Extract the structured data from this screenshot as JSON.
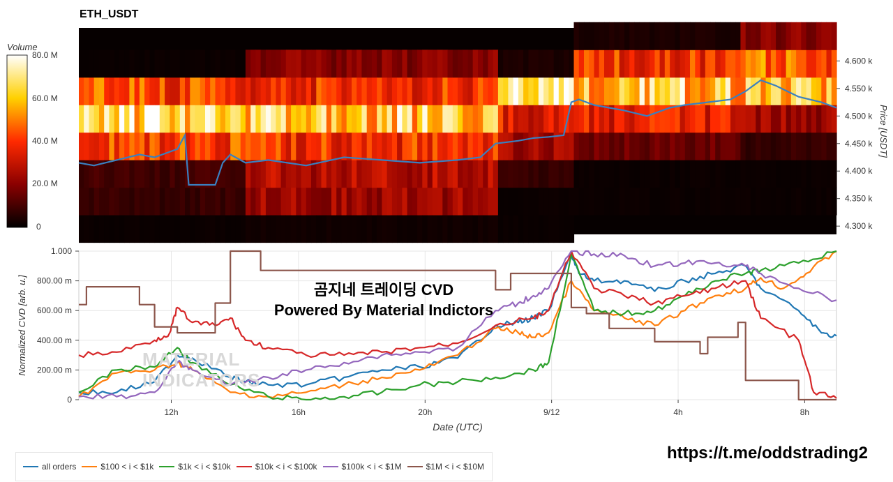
{
  "header": {
    "title": "ETH_USDT"
  },
  "colorbar": {
    "title": "Volume",
    "ticks": [
      "80.0 M",
      "60.0 M",
      "40.0 M",
      "20.0 M",
      "0"
    ]
  },
  "overlay": {
    "line1": "곰지네 트레이딩 CVD",
    "line2": "Powered By Material Indictors"
  },
  "watermark": {
    "line1": "MATERIAL",
    "line2": "INDICATORS"
  },
  "footer": {
    "link": "https://t.me/oddstrading2"
  },
  "legend": [
    {
      "label": "all orders",
      "color": "#1f77b4"
    },
    {
      "label": "$100 < i < $1k",
      "color": "#ff7f0e"
    },
    {
      "label": "$1k < i < $10k",
      "color": "#2ca02c"
    },
    {
      "label": "$10k < i < $100k",
      "color": "#d62728"
    },
    {
      "label": "$100k < i < $1M",
      "color": "#9467bd"
    },
    {
      "label": "$1M < i < $10M",
      "color": "#8c564b"
    }
  ],
  "chart_data": [
    {
      "type": "heatmap",
      "title": "ETH_USDT",
      "ylabel": "Price [USDT]",
      "y_ticks": [
        "4.300 k",
        "4.350 k",
        "4.400 k",
        "4.450 k",
        "4.500 k",
        "4.550 k",
        "4.600 k"
      ],
      "ylim": [
        4285,
        4660
      ],
      "colorbar_range": [
        0,
        80
      ],
      "colorbar_unit": "M",
      "price_bands": [
        4295,
        4345,
        4395,
        4445,
        4495,
        4545,
        4595,
        4645
      ],
      "segments": [
        {
          "x": [
            0,
            0.22
          ],
          "intensity": [
            0.02,
            0.1,
            0.12,
            0.55,
            0.85,
            0.55,
            0.02,
            0.0
          ]
        },
        {
          "x": [
            0.22,
            0.55
          ],
          "intensity": [
            0.03,
            0.3,
            0.35,
            0.5,
            0.8,
            0.5,
            0.25,
            0.0
          ]
        },
        {
          "x": [
            0.55,
            0.65
          ],
          "intensity": [
            0.02,
            0.02,
            0.1,
            0.3,
            0.45,
            0.95,
            0.05,
            0.0
          ]
        },
        {
          "x": [
            0.65,
            0.87
          ],
          "intensity": [
            0.0,
            0.02,
            0.02,
            0.2,
            0.45,
            0.8,
            0.5,
            0.05
          ]
        },
        {
          "x": [
            0.87,
            1.0
          ],
          "intensity": [
            0.0,
            0.02,
            0.02,
            0.1,
            0.3,
            0.75,
            0.6,
            0.25
          ]
        }
      ],
      "price_line": {
        "name": "price",
        "x": [
          0,
          0.02,
          0.05,
          0.08,
          0.1,
          0.12,
          0.13,
          0.14,
          0.145,
          0.18,
          0.19,
          0.2,
          0.22,
          0.25,
          0.3,
          0.35,
          0.4,
          0.45,
          0.5,
          0.53,
          0.55,
          0.58,
          0.6,
          0.62,
          0.64,
          0.65,
          0.66,
          0.68,
          0.7,
          0.72,
          0.75,
          0.78,
          0.8,
          0.83,
          0.86,
          0.88,
          0.9,
          0.92,
          0.95,
          0.98,
          1.0
        ],
        "y": [
          4415,
          4410,
          4420,
          4430,
          4425,
          4435,
          4440,
          4465,
          4375,
          4375,
          4415,
          4430,
          4415,
          4420,
          4410,
          4425,
          4420,
          4415,
          4420,
          4425,
          4450,
          4455,
          4460,
          4462,
          4465,
          4525,
          4530,
          4520,
          4515,
          4510,
          4500,
          4515,
          4520,
          4525,
          4530,
          4545,
          4565,
          4555,
          4535,
          4525,
          4515
        ]
      }
    },
    {
      "type": "line",
      "xlabel": "Date (UTC)",
      "ylabel": "Normalized CVD [arb. u.]",
      "y_ticks": [
        "0",
        "200.00 m",
        "400.00 m",
        "600.00 m",
        "800.00 m",
        "1.000"
      ],
      "ylim": [
        0,
        1
      ],
      "x_ticks": [
        {
          "label": "12h",
          "pos": 0.122
        },
        {
          "label": "16h",
          "pos": 0.29
        },
        {
          "label": "20h",
          "pos": 0.457
        },
        {
          "label": "9/12",
          "pos": 0.624
        },
        {
          "label": "4h",
          "pos": 0.791
        },
        {
          "label": "8h",
          "pos": 0.958
        }
      ],
      "series": [
        {
          "name": "all orders",
          "color": "#1f77b4",
          "x": [
            0,
            0.05,
            0.1,
            0.13,
            0.15,
            0.2,
            0.22,
            0.25,
            0.3,
            0.35,
            0.4,
            0.45,
            0.5,
            0.55,
            0.58,
            0.6,
            0.62,
            0.65,
            0.66,
            0.68,
            0.72,
            0.76,
            0.8,
            0.84,
            0.88,
            0.9,
            0.95,
            0.98,
            1.0
          ],
          "y": [
            0.05,
            0.05,
            0.12,
            0.3,
            0.28,
            0.15,
            0.12,
            0.1,
            0.1,
            0.15,
            0.2,
            0.22,
            0.28,
            0.5,
            0.52,
            0.55,
            0.6,
            0.98,
            0.85,
            0.8,
            0.8,
            0.73,
            0.8,
            0.85,
            0.9,
            0.75,
            0.6,
            0.45,
            0.43
          ]
        },
        {
          "name": "$100 < i < $1k",
          "color": "#ff7f0e",
          "x": [
            0,
            0.05,
            0.1,
            0.13,
            0.15,
            0.2,
            0.25,
            0.3,
            0.35,
            0.4,
            0.45,
            0.5,
            0.55,
            0.58,
            0.6,
            0.62,
            0.65,
            0.68,
            0.72,
            0.76,
            0.8,
            0.84,
            0.88,
            0.9,
            0.93,
            0.96,
            1.0
          ],
          "y": [
            0.02,
            0.18,
            0.2,
            0.25,
            0.2,
            0.05,
            0.02,
            0.05,
            0.1,
            0.15,
            0.2,
            0.3,
            0.48,
            0.45,
            0.42,
            0.45,
            0.8,
            0.6,
            0.55,
            0.5,
            0.6,
            0.7,
            0.75,
            0.82,
            0.75,
            0.85,
            1.0
          ]
        },
        {
          "name": "$1k < i < $10k",
          "color": "#2ca02c",
          "x": [
            0,
            0.05,
            0.1,
            0.13,
            0.15,
            0.2,
            0.25,
            0.3,
            0.35,
            0.4,
            0.45,
            0.5,
            0.55,
            0.6,
            0.62,
            0.65,
            0.68,
            0.72,
            0.76,
            0.8,
            0.84,
            0.88,
            0.9,
            0.95,
            1.0
          ],
          "y": [
            0.05,
            0.2,
            0.22,
            0.35,
            0.25,
            0.1,
            0.02,
            0.0,
            0.02,
            0.05,
            0.1,
            0.12,
            0.15,
            0.2,
            0.25,
            0.98,
            0.6,
            0.58,
            0.6,
            0.7,
            0.8,
            0.85,
            0.87,
            0.92,
            1.0
          ]
        },
        {
          "name": "$10k < i < $100k",
          "color": "#d62728",
          "x": [
            0,
            0.05,
            0.1,
            0.12,
            0.13,
            0.15,
            0.18,
            0.2,
            0.22,
            0.25,
            0.3,
            0.35,
            0.4,
            0.45,
            0.5,
            0.55,
            0.6,
            0.62,
            0.65,
            0.68,
            0.72,
            0.76,
            0.8,
            0.84,
            0.88,
            0.9,
            0.95,
            0.97,
            1.0
          ],
          "y": [
            0.3,
            0.32,
            0.4,
            0.45,
            0.62,
            0.52,
            0.5,
            0.55,
            0.4,
            0.35,
            0.3,
            0.3,
            0.32,
            0.35,
            0.38,
            0.5,
            0.55,
            0.6,
            1.0,
            0.75,
            0.7,
            0.65,
            0.7,
            0.75,
            0.8,
            0.55,
            0.4,
            0.05,
            0.01
          ]
        },
        {
          "name": "$100k < i < $1M",
          "color": "#9467bd",
          "x": [
            0,
            0.05,
            0.1,
            0.13,
            0.15,
            0.2,
            0.25,
            0.3,
            0.35,
            0.4,
            0.45,
            0.5,
            0.55,
            0.58,
            0.6,
            0.62,
            0.65,
            0.68,
            0.72,
            0.76,
            0.8,
            0.84,
            0.88,
            0.9,
            0.95,
            1.0
          ],
          "y": [
            0.02,
            0.02,
            0.05,
            0.25,
            0.2,
            0.1,
            0.15,
            0.2,
            0.25,
            0.3,
            0.32,
            0.35,
            0.6,
            0.65,
            0.7,
            0.75,
            1.0,
            0.98,
            0.97,
            0.9,
            0.92,
            0.92,
            0.9,
            0.85,
            0.75,
            0.67
          ]
        },
        {
          "name": "$1M < i < $10M",
          "color": "#8c564b",
          "x": [
            0,
            0.01,
            0.01,
            0.08,
            0.08,
            0.1,
            0.1,
            0.13,
            0.13,
            0.18,
            0.18,
            0.2,
            0.2,
            0.24,
            0.24,
            0.55,
            0.55,
            0.57,
            0.57,
            0.65,
            0.65,
            0.67,
            0.67,
            0.7,
            0.7,
            0.76,
            0.76,
            0.82,
            0.82,
            0.83,
            0.83,
            0.87,
            0.87,
            0.88,
            0.88,
            0.95,
            0.95,
            1.0
          ],
          "y": [
            0.64,
            0.64,
            0.76,
            0.76,
            0.64,
            0.64,
            0.49,
            0.49,
            0.45,
            0.45,
            0.65,
            0.65,
            1.0,
            1.0,
            0.87,
            0.87,
            0.74,
            0.74,
            0.85,
            0.85,
            0.62,
            0.62,
            0.58,
            0.58,
            0.48,
            0.48,
            0.39,
            0.39,
            0.31,
            0.31,
            0.42,
            0.42,
            0.52,
            0.52,
            0.13,
            0.13,
            0.0,
            0.0
          ]
        }
      ]
    }
  ]
}
